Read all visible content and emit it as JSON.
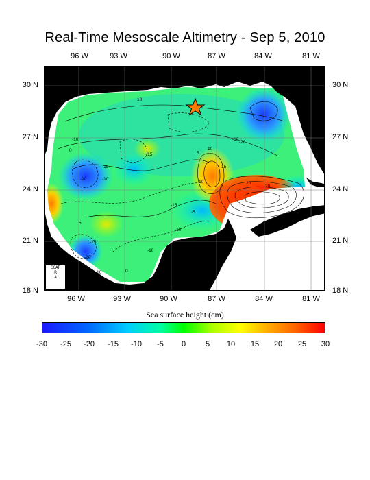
{
  "title": "Real-Time Mesoscale Altimetry - Sep 5, 2010",
  "lon_labels": [
    "96 W",
    "93 W",
    "90 W",
    "87 W",
    "84 W",
    "81 W"
  ],
  "lat_labels": [
    "30 N",
    "27 N",
    "24 N",
    "21 N",
    "18 N"
  ],
  "contour_labels": [
    "10",
    "-10",
    "-15",
    "-10",
    "-20",
    "0",
    "-15",
    "5",
    "10",
    "15",
    "20",
    "-10",
    "-20",
    "5",
    "-15",
    "10",
    "-10",
    "-5",
    "-20",
    "0",
    "10",
    "20",
    "-15",
    "-10"
  ],
  "logo_text": [
    "CCAR",
    "R",
    "A"
  ],
  "colorbar": {
    "title": "Sea surface height (cm)",
    "ticks": [
      "-30",
      "-25",
      "-20",
      "-15",
      "-10",
      "-5",
      "0",
      "5",
      "10",
      "15",
      "20",
      "25",
      "30"
    ],
    "range": [
      -30,
      30
    ]
  },
  "marker": {
    "label": "star",
    "lon_w": 88.4,
    "lat_n": 28.7
  },
  "colors": {
    "min": "#1a1aff",
    "mid": "#00ff00",
    "max": "#ff0000",
    "land": "#000000"
  }
}
